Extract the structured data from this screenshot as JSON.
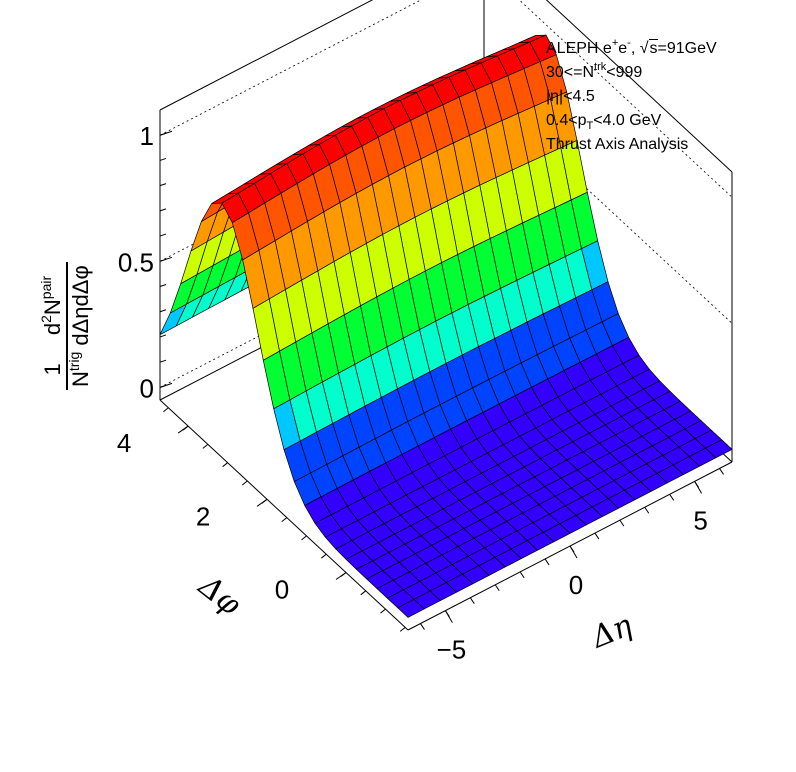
{
  "chart_data": {
    "type": "surface3d",
    "annotations": {
      "line1": {
        "text": "ALEPH e",
        "sup1": "+",
        "mid": "e",
        "sup2": "-",
        "sep": ", ",
        "sqrt_symbol": "√",
        "sqrt_arg": "s",
        "rest": "=91GeV"
      },
      "line2": {
        "pre": "30<=N",
        "sup": "trk",
        "post": "<999"
      },
      "line3": "|η|<4.5",
      "line4": {
        "pre": "0.4<p",
        "sub": "T",
        "post": "<4.0 GeV"
      },
      "line5": "Thrust Axis Analysis"
    },
    "xlabel": "Δη",
    "ylabel": "Δφ",
    "zlabel": {
      "left_num": "1",
      "left_den_pre": "N",
      "left_den_sup": "trig",
      "right_num_pre": "d",
      "right_num_sup1": "2",
      "right_num_mid": "N",
      "right_num_sup2": "pair",
      "right_den": "dΔηdΔφ"
    },
    "x_range": [
      -6.5,
      6.5
    ],
    "y_range": [
      -1.5708,
      4.7124
    ],
    "z_range": [
      -0.05,
      1.1
    ],
    "x_ticks": [
      {
        "v": -5,
        "label": "−5"
      },
      {
        "v": 0,
        "label": "0"
      },
      {
        "v": 5,
        "label": "5"
      }
    ],
    "y_ticks": [
      {
        "v": 0,
        "label": "0"
      },
      {
        "v": 2,
        "label": "2"
      },
      {
        "v": 4,
        "label": "4"
      }
    ],
    "z_ticks": [
      {
        "v": 0,
        "label": "0"
      },
      {
        "v": 0.5,
        "label": "0.5"
      },
      {
        "v": 1,
        "label": "1"
      }
    ],
    "grid": true,
    "surface": {
      "nx": 20,
      "ny": 24,
      "model": "gaussian ridge along Δη centred at Δφ≈π",
      "ridge_center_phi": 3.1416,
      "ridge_sigma_phi": 0.9,
      "baseline": 0.0,
      "peak": 1.0,
      "colormap": [
        "#3300ff",
        "#0044ff",
        "#00c8ff",
        "#00ffcc",
        "#00ff33",
        "#66ff00",
        "#ccff00",
        "#ffdd00",
        "#ff9900",
        "#ff5500",
        "#ff0000"
      ]
    }
  }
}
